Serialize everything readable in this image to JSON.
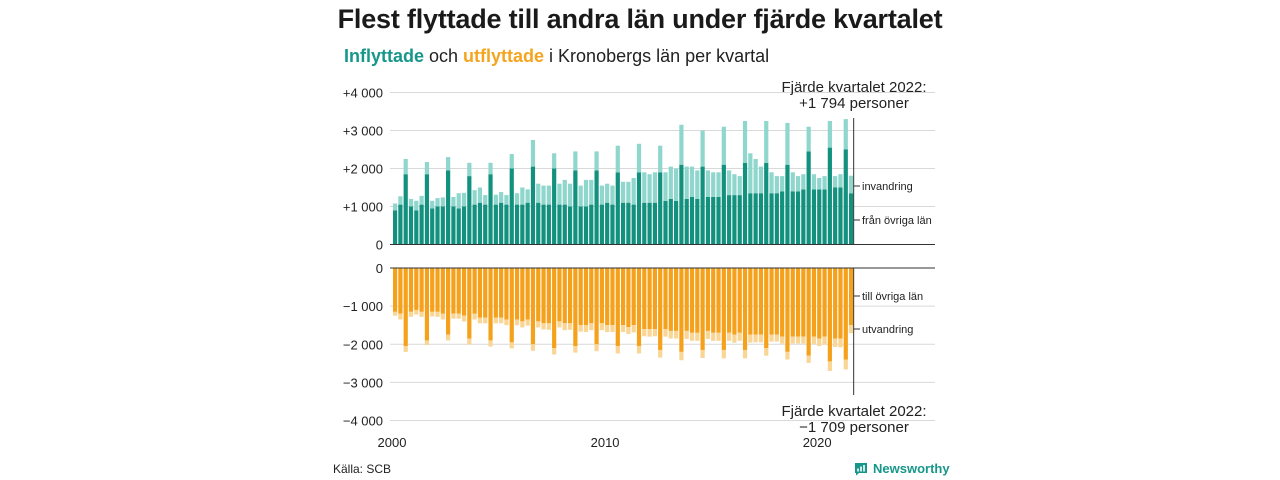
{
  "title": "Flest flyttade till andra län under fjärde kvartalet",
  "subtitle": {
    "inflow_word": "Inflyttade",
    "middle": " och ",
    "outflow_word": "utflyttade",
    "rest": " i Kronobergs län per kvartal"
  },
  "source": "Källa: SCB",
  "brand": "Newsworthy",
  "colors": {
    "inflow_dark": "#13917f",
    "inflow_light": "#8fd6cd",
    "outflow_dark": "#f5a11b",
    "outflow_light": "#f9d596",
    "grid": "#d9d9d9"
  },
  "chart_data": {
    "type": "bar",
    "x_start": "2000 Q1",
    "x_ticks": [
      "2000",
      "2010",
      "2020"
    ],
    "y_ticks_top": [
      "+4 000",
      "+3 000",
      "+2 000",
      "+1 000",
      "0"
    ],
    "y_ticks_bottom": [
      "0",
      "−1 000",
      "−2 000",
      "−3 000",
      "−4 000"
    ],
    "ylim_top": [
      0,
      4000
    ],
    "ylim_bottom": [
      -4000,
      0
    ],
    "annotations": {
      "top_line1": "Fjärde kvartalet 2022:",
      "top_line2": "+1 794 personer",
      "bottom_line1": "Fjärde kvartalet 2022:",
      "bottom_line2": "−1 709 personer",
      "label_invandring": "invandring",
      "label_fran": "från övriga län",
      "label_till": "till övriga län",
      "label_utvandring": "utvandring"
    },
    "series": [
      {
        "name": "från övriga län",
        "values": [
          900,
          1050,
          1850,
          1000,
          900,
          1050,
          1850,
          950,
          1000,
          1000,
          1950,
          1000,
          950,
          1000,
          1800,
          1050,
          1100,
          1050,
          1850,
          1050,
          1100,
          1050,
          2000,
          1050,
          1050,
          1100,
          2050,
          1100,
          1050,
          1050,
          2000,
          1050,
          1050,
          1000,
          1950,
          1000,
          1000,
          1050,
          1950,
          1050,
          1100,
          1050,
          1900,
          1100,
          1100,
          1050,
          1900,
          1100,
          1100,
          1100,
          1900,
          1150,
          1200,
          1150,
          2100,
          1200,
          1250,
          1200,
          2050,
          1250,
          1250,
          1250,
          2100,
          1300,
          1300,
          1300,
          2150,
          1350,
          1350,
          1350,
          2150,
          1350,
          1350,
          1400,
          2100,
          1400,
          1400,
          1450,
          2450,
          1450,
          1450,
          1450,
          2550,
          1500,
          1500,
          2500,
          1350
        ]
      },
      {
        "name": "invandring",
        "values": [
          180,
          220,
          400,
          200,
          250,
          230,
          320,
          200,
          220,
          240,
          350,
          250,
          400,
          360,
          350,
          380,
          400,
          250,
          300,
          260,
          280,
          250,
          380,
          300,
          450,
          350,
          700,
          500,
          500,
          500,
          400,
          550,
          650,
          600,
          500,
          550,
          700,
          650,
          500,
          500,
          500,
          500,
          700,
          550,
          550,
          700,
          750,
          800,
          750,
          800,
          700,
          750,
          850,
          850,
          1050,
          850,
          800,
          750,
          950,
          700,
          650,
          650,
          1000,
          650,
          550,
          500,
          1100,
          1050,
          900,
          700,
          1100,
          550,
          450,
          400,
          1100,
          500,
          400,
          400,
          650,
          400,
          300,
          350,
          700,
          300,
          350,
          800,
          460
        ]
      },
      {
        "name": "till övriga län",
        "values": [
          1150,
          1200,
          2050,
          1150,
          1100,
          1150,
          1900,
          1150,
          1150,
          1200,
          1750,
          1200,
          1200,
          1250,
          1850,
          1200,
          1300,
          1300,
          1900,
          1300,
          1300,
          1350,
          1950,
          1350,
          1400,
          1350,
          2000,
          1400,
          1450,
          1450,
          2100,
          1400,
          1450,
          1450,
          2050,
          1500,
          1500,
          1450,
          2000,
          1450,
          1500,
          1500,
          2050,
          1500,
          1550,
          1500,
          2050,
          1600,
          1600,
          1600,
          2150,
          1600,
          1650,
          1650,
          2200,
          1650,
          1700,
          1700,
          2150,
          1650,
          1700,
          1700,
          2150,
          1700,
          1750,
          1700,
          2150,
          1750,
          1750,
          1750,
          2100,
          1750,
          1750,
          1800,
          2200,
          1800,
          1800,
          1800,
          2300,
          1800,
          1850,
          1800,
          2450,
          1850,
          1850,
          2400,
          1500
        ]
      },
      {
        "name": "utvandring",
        "values": [
          100,
          150,
          150,
          130,
          120,
          130,
          120,
          120,
          130,
          150,
          150,
          130,
          130,
          150,
          160,
          150,
          150,
          150,
          160,
          150,
          150,
          150,
          160,
          150,
          160,
          160,
          170,
          160,
          160,
          170,
          170,
          160,
          180,
          170,
          170,
          170,
          180,
          180,
          180,
          180,
          180,
          180,
          190,
          180,
          180,
          190,
          190,
          190,
          200,
          190,
          200,
          200,
          200,
          200,
          220,
          210,
          210,
          210,
          210,
          210,
          210,
          210,
          220,
          210,
          210,
          210,
          220,
          210,
          200,
          200,
          200,
          180,
          180,
          180,
          200,
          180,
          180,
          180,
          190,
          190,
          200,
          210,
          250,
          220,
          230,
          260,
          209
        ]
      }
    ]
  }
}
